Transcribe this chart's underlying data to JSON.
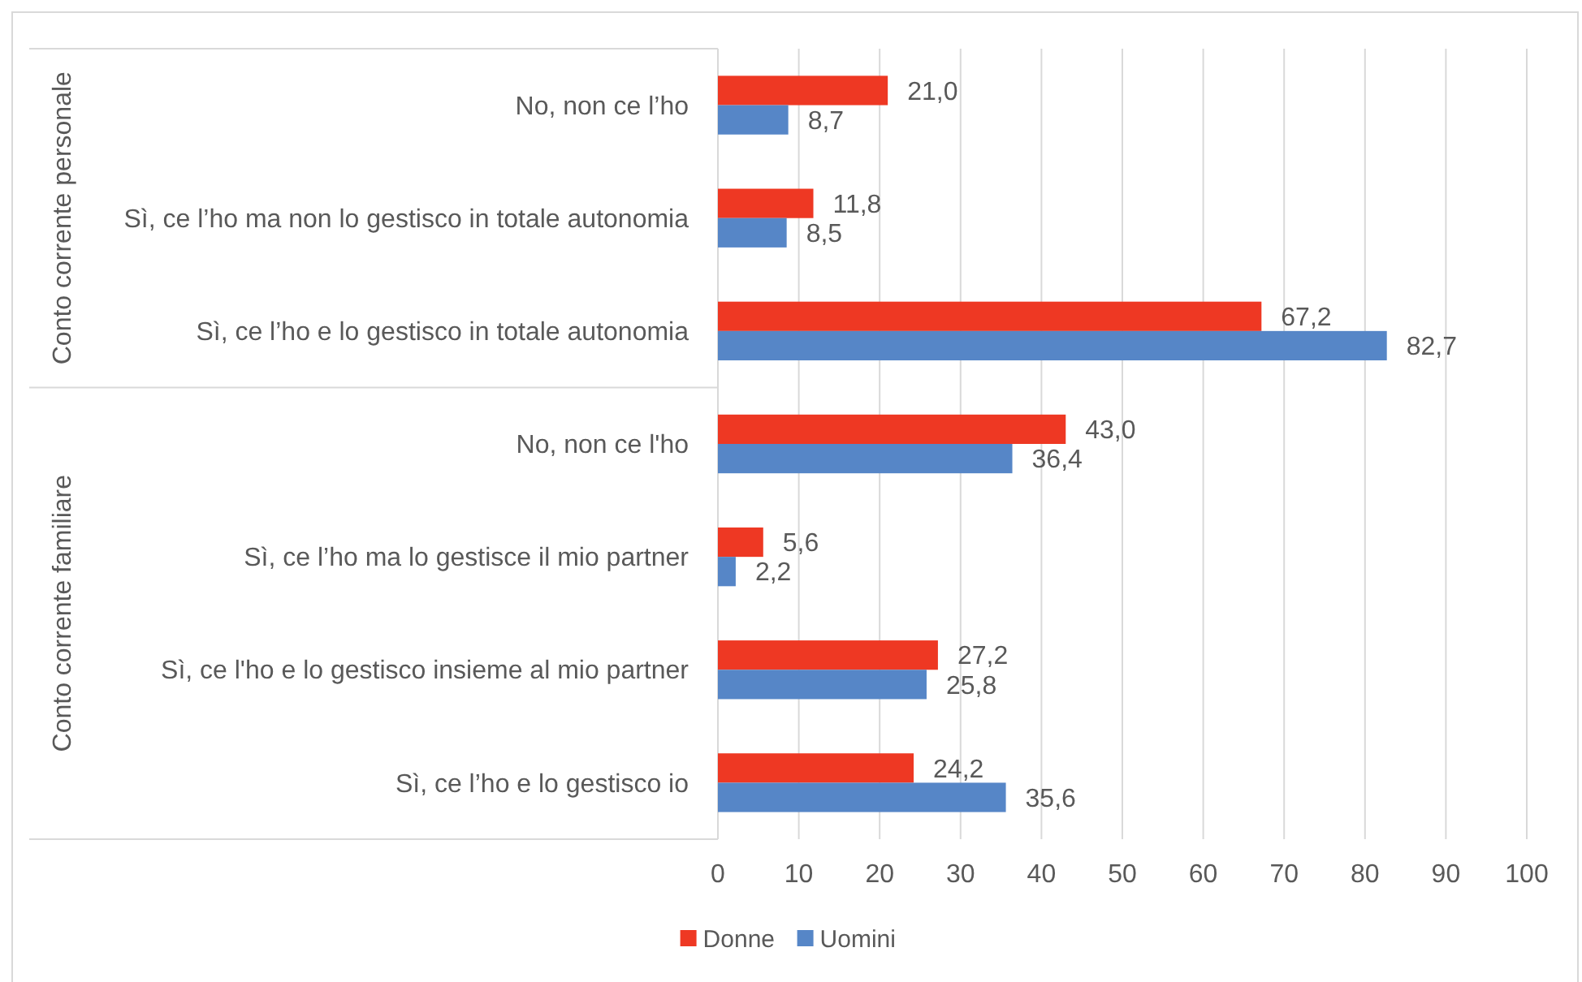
{
  "chart_data": {
    "type": "bar",
    "orientation": "horizontal",
    "categories": [
      "No, non ce l’ho",
      "Sì, ce l’ho ma non lo gestisco in totale autonomia",
      "Sì, ce l’ho e lo gestisco in totale autonomia",
      "No, non ce l'ho",
      "Sì, ce l’ho ma lo gestisce il mio partner",
      "Sì, ce l'ho e lo gestisco insieme al mio partner",
      "Sì, ce l’ho e lo gestisco io"
    ],
    "series": [
      {
        "name": "Donne",
        "color": "#ee3823",
        "values": [
          21.0,
          11.8,
          67.2,
          43.0,
          5.6,
          27.2,
          24.2
        ],
        "value_labels": [
          "21,0",
          "11,8",
          "67,2",
          "43,0",
          "5,6",
          "27,2",
          "24,2"
        ]
      },
      {
        "name": "Uomini",
        "color": "#5686c7",
        "values": [
          8.7,
          8.5,
          82.7,
          36.4,
          2.2,
          25.8,
          35.6
        ],
        "value_labels": [
          "8,7",
          "8,5",
          "82,7",
          "36,4",
          "2,2",
          "25,8",
          "35,6"
        ]
      }
    ],
    "xlim": [
      0,
      100
    ],
    "xticks": [
      0,
      10,
      20,
      30,
      40,
      50,
      60,
      70,
      80,
      90,
      100
    ],
    "grid": "x",
    "legend": "bottom",
    "annotations": [
      "Conto corrente personale",
      "Conto corrente familiare"
    ]
  }
}
